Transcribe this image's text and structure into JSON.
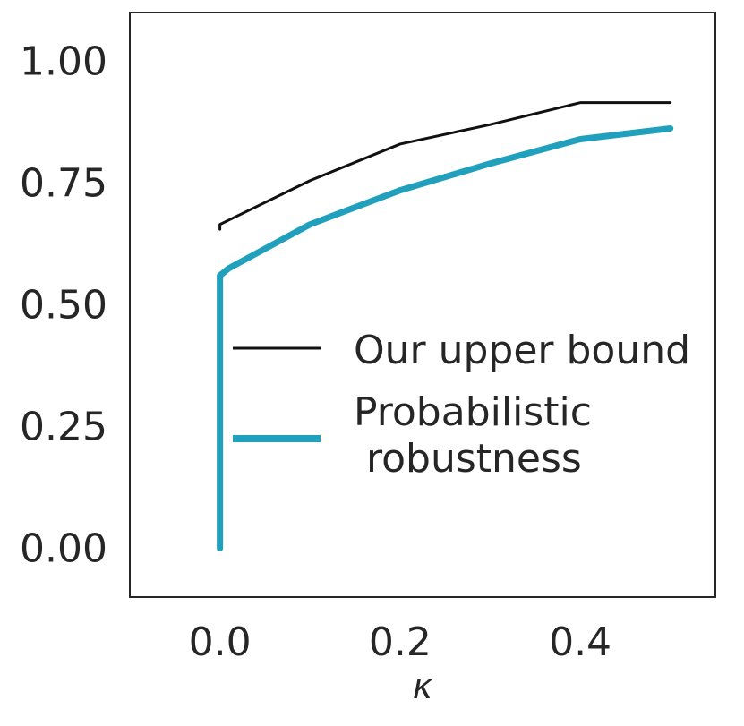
{
  "chart_data": {
    "type": "line",
    "title": "",
    "xlabel": "κ",
    "ylabel": "",
    "xlim": [
      -0.1,
      0.55
    ],
    "ylim": [
      -0.1,
      1.1
    ],
    "xticks": [
      0.0,
      0.2,
      0.4
    ],
    "xtick_labels": [
      "0.0",
      "0.2",
      "0.4"
    ],
    "yticks": [
      0.0,
      0.25,
      0.5,
      0.75,
      1.0
    ],
    "ytick_labels": [
      "0.00",
      "0.25",
      "0.50",
      "0.75",
      "1.00"
    ],
    "grid": false,
    "legend_position": "center-right",
    "series": [
      {
        "name": "Our upper bound",
        "color": "#111111",
        "line_style": "thin",
        "points": [
          {
            "x": 0.0,
            "y": 0.655
          },
          {
            "x": 0.0,
            "y": 0.665
          },
          {
            "x": 0.1,
            "y": 0.755
          },
          {
            "x": 0.2,
            "y": 0.83
          },
          {
            "x": 0.3,
            "y": 0.87
          },
          {
            "x": 0.4,
            "y": 0.915
          },
          {
            "x": 0.5,
            "y": 0.915
          }
        ]
      },
      {
        "name": "Probabilistic\n robustness",
        "color": "#21a0bd",
        "line_style": "thick",
        "points": [
          {
            "x": 0.0,
            "y": 0.0
          },
          {
            "x": 0.0,
            "y": 0.56
          },
          {
            "x": 0.01,
            "y": 0.575
          },
          {
            "x": 0.1,
            "y": 0.665
          },
          {
            "x": 0.2,
            "y": 0.735
          },
          {
            "x": 0.3,
            "y": 0.79
          },
          {
            "x": 0.4,
            "y": 0.84
          },
          {
            "x": 0.5,
            "y": 0.862
          }
        ]
      }
    ]
  }
}
